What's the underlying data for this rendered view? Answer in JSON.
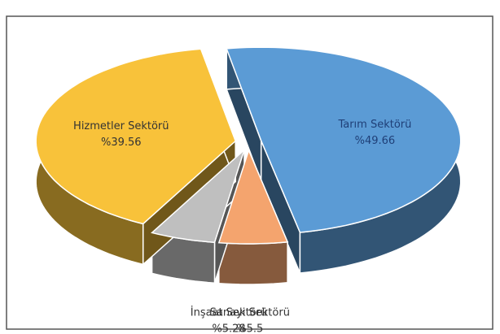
{
  "chart_data": {
    "type": "pie",
    "categories": [
      "Tarım Sektörü",
      "Sanayi Sektörü",
      "İnşaat Sektörü",
      "Hizmetler Sektörü"
    ],
    "values": [
      49.66,
      5.5,
      5.28,
      39.56
    ],
    "value_labels": [
      "%49.66",
      "%5.5",
      "%5.28",
      "%39.56"
    ],
    "colors": [
      "#5b9bd5",
      "#f4a46e",
      "#bfbfbf",
      "#f8c23a"
    ]
  }
}
